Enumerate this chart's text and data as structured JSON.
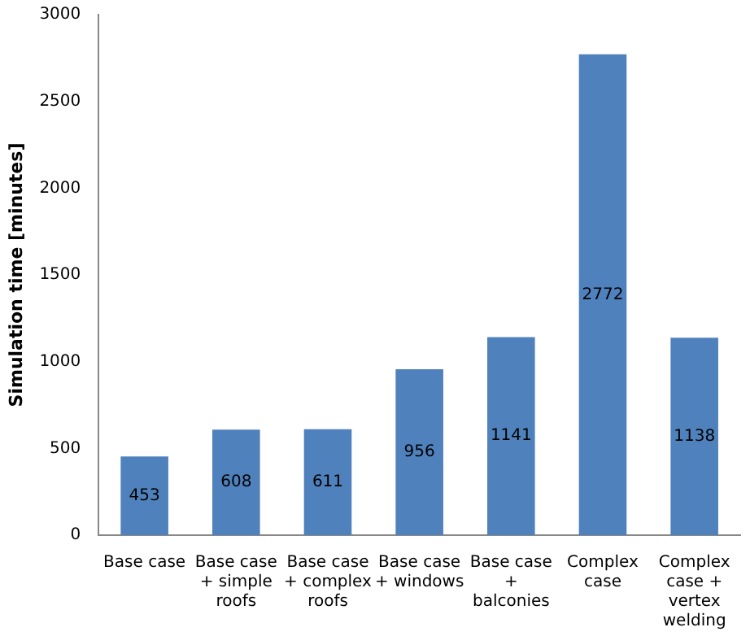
{
  "chart_data": {
    "type": "bar",
    "ylabel": "Simulation time [minutes]",
    "categories": [
      "Base case",
      "Base case + simple roofs",
      "Base case + complex roofs",
      "Base case + windows",
      "Base case + balconies",
      "Complex case",
      "Complex case + vertex welding"
    ],
    "values": [
      453,
      608,
      611,
      956,
      1141,
      2772,
      1138
    ],
    "color": "#4f81bd",
    "ylim": [
      0,
      3000
    ],
    "yticks": [
      0,
      500,
      1000,
      1500,
      2000,
      2500,
      3000
    ],
    "grid": false,
    "legend": false,
    "data_labels": true
  }
}
